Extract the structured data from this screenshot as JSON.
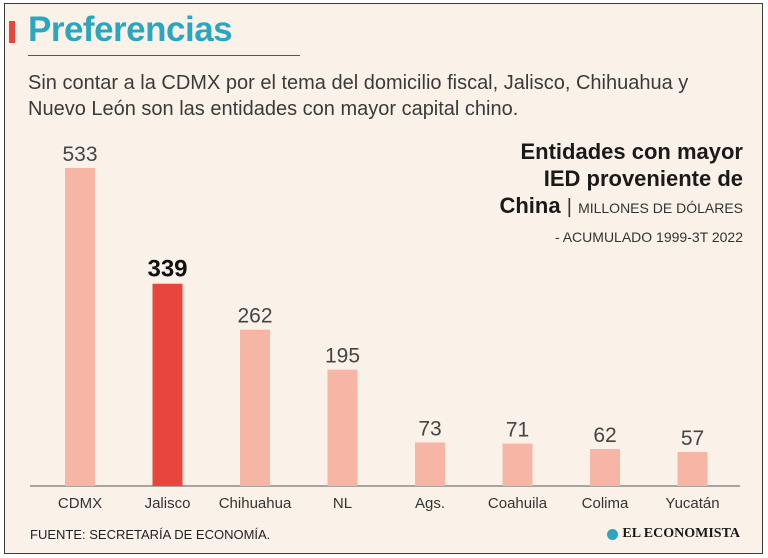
{
  "header": {
    "title": "Preferencias",
    "subtitle": "Sin contar a la CDMX por el tema del domicilio fiscal, Jalisco, Chihuahua y Nuevo León son las entidades con mayor capital chino."
  },
  "chart_title": {
    "line1": "Entidades con mayor",
    "line2": "IED proveniente de",
    "line3": "China",
    "separator": "|",
    "units": "MILLONES DE DÓLARES",
    "period": "- ACUMULADO 1999-3T 2022"
  },
  "chart_data": {
    "type": "bar",
    "title": "Entidades con mayor IED proveniente de China",
    "ylabel": "Millones de dólares",
    "xlabel": "",
    "categories": [
      "CDMX",
      "Jalisco",
      "Chihuahua",
      "NL",
      "Ags.",
      "Coahuila",
      "Colima",
      "Yucatán"
    ],
    "values": [
      533,
      339,
      262,
      195,
      73,
      71,
      62,
      57
    ],
    "ylim": [
      0,
      533
    ],
    "highlight_index": 1,
    "colors": {
      "default": "#f7b5a6",
      "highlight": "#e8453c"
    }
  },
  "footer": {
    "source": "FUENTE: SECRETARÍA DE ECONOMÍA.",
    "logo": "EL ECONOMISTA"
  },
  "colors": {
    "accent": "#e8453c",
    "title": "#2ba6c0",
    "background": "#faf2e8"
  }
}
